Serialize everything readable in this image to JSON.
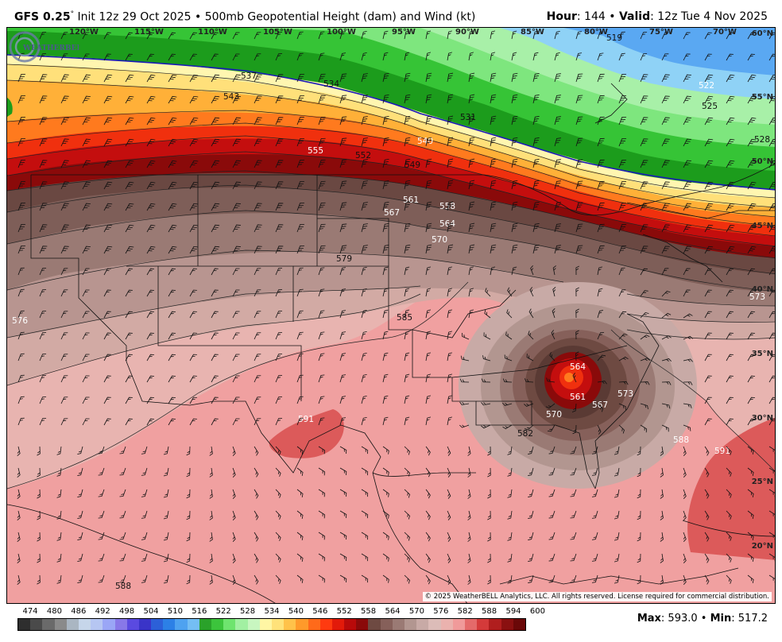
{
  "header": {
    "model": "GFS 0.25",
    "degree": "°",
    "init": "Init 12z 29 Oct 2025",
    "bullet": "•",
    "product": "500mb Geopotential Height (dam) and Wind (kt)",
    "hour_label": "Hour",
    "hour_value": ": 144",
    "valid_label": "Valid",
    "valid_value": ": 12z Tue 4 Nov 2025"
  },
  "map": {
    "longitudes": [
      "120°W",
      "115°W",
      "110°W",
      "105°W",
      "100°W",
      "95°W",
      "90°W",
      "85°W",
      "80°W",
      "75°W",
      "70°W"
    ],
    "latitudes": [
      "60°N",
      "55°N",
      "50°N",
      "45°N",
      "40°N",
      "35°N",
      "30°N",
      "25°N",
      "20°N"
    ],
    "contour_labels": [
      "537",
      "534",
      "543",
      "531",
      "522",
      "525",
      "528",
      "540",
      "555",
      "552",
      "549",
      "561",
      "558",
      "567",
      "564",
      "570",
      "579",
      "576",
      "573",
      "585",
      "564",
      "561",
      "567",
      "570",
      "573",
      "582",
      "588",
      "591",
      "591",
      "588",
      "519"
    ],
    "copyright": "© 2025 WeatherBELL Analytics, LLC. All rights reserved. License required for commercial distribution.",
    "logo_text": "WEATHERBELL"
  },
  "colorbar": {
    "ticks": [
      "474",
      "480",
      "486",
      "492",
      "498",
      "504",
      "510",
      "516",
      "522",
      "528",
      "534",
      "540",
      "546",
      "552",
      "558",
      "564",
      "570",
      "576",
      "582",
      "588",
      "594",
      "600"
    ],
    "colors": [
      "#2e2e2e",
      "#4a4a4a",
      "#6a6a6a",
      "#8a8a8a",
      "#aab6c2",
      "#c6d6ea",
      "#b6c6f2",
      "#9aa6f6",
      "#8878e8",
      "#5a4ae0",
      "#3a34c8",
      "#2c60d8",
      "#2c80e6",
      "#4ea2f0",
      "#74bef4",
      "#2aa22a",
      "#3cc43c",
      "#6ee46e",
      "#a2f0a2",
      "#c8f6c0",
      "#fff6a4",
      "#ffe27a",
      "#ffc24a",
      "#ff9a2a",
      "#ff6a1a",
      "#ff3a10",
      "#e21a0a",
      "#b80a0a",
      "#8a0a0a",
      "#6e4a42",
      "#86605a",
      "#9a7a74",
      "#b29690",
      "#c8aaa6",
      "#dcbcb8",
      "#eab2ae",
      "#f09a9a",
      "#e46a6a",
      "#d43a3a",
      "#b01e1e",
      "#8a1010",
      "#6a0808"
    ]
  },
  "stats": {
    "max_label": "Max",
    "max_value": ": 593.0",
    "bullet": "•",
    "min_label": "Min",
    "min_value": ": 517.2"
  }
}
